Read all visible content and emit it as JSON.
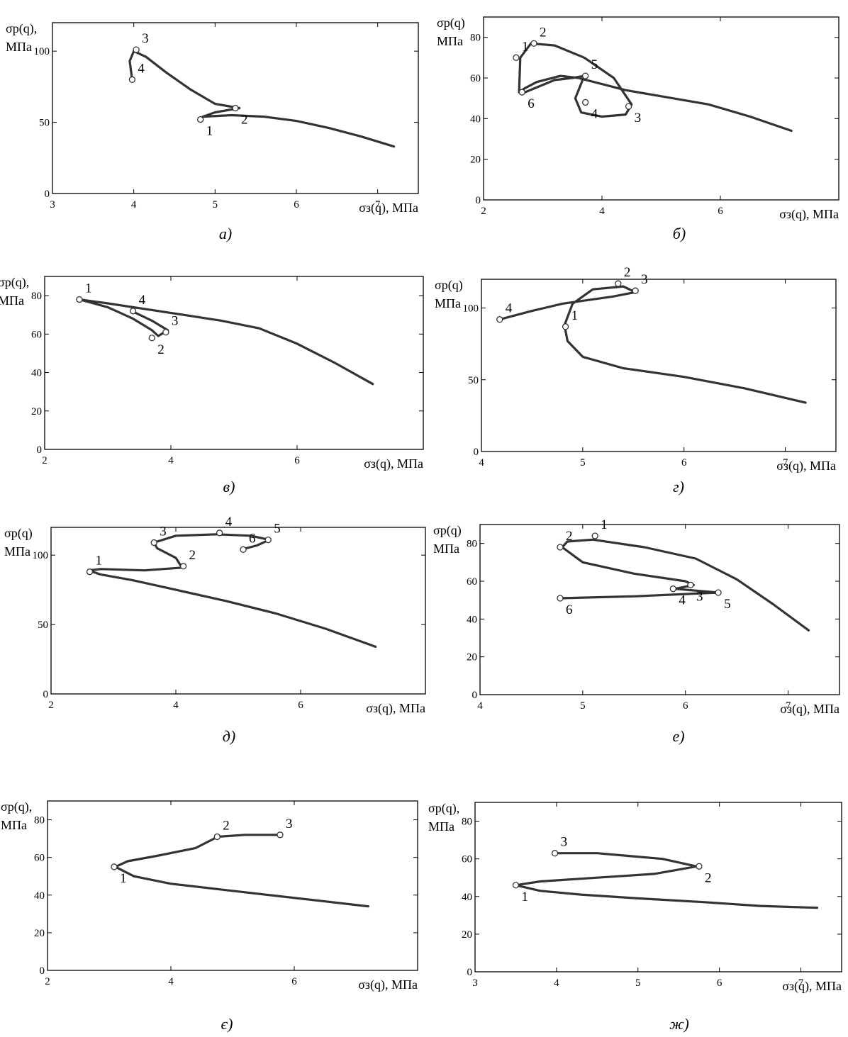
{
  "chart_data": [
    {
      "type": "line",
      "caption": "а)",
      "ylabel": [
        "σр(q),",
        "МПа"
      ],
      "xlabel": "σз(q), МПа",
      "xlim": [
        3,
        7.5
      ],
      "ylim": [
        0,
        120
      ],
      "xticks": [
        3,
        4,
        5,
        6,
        7
      ],
      "yticks": [
        0,
        50,
        100
      ],
      "series": [
        {
          "x": [
            7.2,
            6.8,
            6.4,
            6.0,
            5.6,
            5.2,
            4.85,
            5.0,
            5.3,
            5.0,
            4.7,
            4.4,
            4.15,
            4.0,
            3.95,
            3.98
          ],
          "y": [
            33,
            40,
            46,
            51,
            54,
            55,
            54,
            57,
            60,
            63,
            73,
            85,
            96,
            100,
            93,
            80
          ]
        }
      ],
      "points": [
        {
          "label": "1",
          "x": 4.82,
          "y": 52
        },
        {
          "label": "2",
          "x": 5.25,
          "y": 60
        },
        {
          "label": "3",
          "x": 4.03,
          "y": 101
        },
        {
          "label": "4",
          "x": 3.98,
          "y": 80
        }
      ]
    },
    {
      "type": "line",
      "caption": "б)",
      "ylabel": [
        "σр(q)",
        "МПа"
      ],
      "xlabel": "σз(q), МПа",
      "xlim": [
        2,
        8
      ],
      "ylim": [
        0,
        90
      ],
      "xticks": [
        2,
        4,
        6
      ],
      "yticks": [
        0,
        20,
        40,
        60,
        80
      ],
      "series": [
        {
          "x": [
            7.2,
            6.5,
            5.8,
            5.0,
            4.4,
            4.0,
            3.6,
            3.3,
            2.9,
            2.7,
            2.6,
            2.62,
            2.8,
            3.2,
            3.7,
            4.2,
            4.5,
            4.4,
            4.0,
            3.65,
            3.55,
            3.7,
            3.5,
            3.2,
            2.95,
            2.7
          ],
          "y": [
            34,
            41,
            47,
            51,
            54,
            57,
            60,
            61,
            58,
            55,
            53,
            70,
            77,
            76,
            70,
            60,
            47,
            42,
            41,
            43,
            50,
            61,
            60,
            59,
            56,
            53
          ]
        }
      ],
      "points": [
        {
          "label": "1",
          "x": 2.55,
          "y": 70
        },
        {
          "label": "2",
          "x": 2.85,
          "y": 77
        },
        {
          "label": "3",
          "x": 4.45,
          "y": 46
        },
        {
          "label": "4",
          "x": 3.72,
          "y": 48
        },
        {
          "label": "5",
          "x": 3.72,
          "y": 61
        },
        {
          "label": "6",
          "x": 2.65,
          "y": 53
        }
      ]
    },
    {
      "type": "line",
      "caption": "в)",
      "ylabel": [
        "σр(q),",
        "МПа"
      ],
      "xlabel": "σз(q), МПа",
      "xlim": [
        2,
        8
      ],
      "ylim": [
        0,
        90
      ],
      "xticks": [
        2,
        4,
        6
      ],
      "yticks": [
        0,
        20,
        40,
        60,
        80
      ],
      "series": [
        {
          "x": [
            7.2,
            6.6,
            6.0,
            5.4,
            4.8,
            4.2,
            3.6,
            3.0,
            2.55,
            3.0,
            3.4,
            3.7,
            3.8,
            3.95,
            3.7,
            3.38
          ],
          "y": [
            34,
            45,
            55,
            63,
            67,
            70,
            73,
            76,
            78,
            74,
            68,
            62,
            59,
            62,
            67,
            72
          ]
        }
      ],
      "points": [
        {
          "label": "1",
          "x": 2.55,
          "y": 78
        },
        {
          "label": "2",
          "x": 3.7,
          "y": 58
        },
        {
          "label": "3",
          "x": 3.92,
          "y": 61
        },
        {
          "label": "4",
          "x": 3.4,
          "y": 72
        }
      ]
    },
    {
      "type": "line",
      "caption": "г)",
      "ylabel": [
        "σр(q)",
        "МПа"
      ],
      "xlabel": "σз(q), МПа",
      "xlim": [
        4,
        7.5
      ],
      "ylim": [
        0,
        120
      ],
      "xticks": [
        4,
        5,
        6,
        7
      ],
      "yticks": [
        0,
        50,
        100
      ],
      "series": [
        {
          "x": [
            7.2,
            6.6,
            6.0,
            5.4,
            5.0,
            4.85,
            4.82,
            4.9,
            5.1,
            5.4,
            5.52,
            5.3,
            4.8,
            4.5,
            4.18
          ],
          "y": [
            34,
            44,
            52,
            58,
            66,
            77,
            88,
            103,
            113,
            115,
            111,
            108,
            103,
            98,
            92
          ]
        }
      ],
      "points": [
        {
          "label": "1",
          "x": 4.83,
          "y": 87
        },
        {
          "label": "2",
          "x": 5.35,
          "y": 117
        },
        {
          "label": "3",
          "x": 5.52,
          "y": 112
        },
        {
          "label": "4",
          "x": 4.18,
          "y": 92
        }
      ]
    },
    {
      "type": "line",
      "caption": "д)",
      "ylabel": [
        "σр(q)",
        "МПа"
      ],
      "xlabel": "σз(q), МПа",
      "xlim": [
        2,
        8
      ],
      "ylim": [
        0,
        120
      ],
      "xticks": [
        2,
        4,
        6
      ],
      "yticks": [
        0,
        50,
        100
      ],
      "series": [
        {
          "x": [
            7.2,
            6.4,
            5.6,
            4.8,
            4.0,
            3.3,
            2.8,
            2.6,
            2.8,
            3.5,
            4.1,
            4.0,
            3.7,
            3.65,
            4.0,
            4.65,
            5.2,
            5.5,
            5.3,
            5.05
          ],
          "y": [
            34,
            47,
            58,
            67,
            75,
            82,
            86,
            89,
            90,
            89,
            91,
            98,
            105,
            109,
            114,
            115,
            114,
            111,
            107,
            104
          ]
        }
      ],
      "points": [
        {
          "label": "1",
          "x": 2.62,
          "y": 88
        },
        {
          "label": "2",
          "x": 4.12,
          "y": 92
        },
        {
          "label": "3",
          "x": 3.65,
          "y": 109
        },
        {
          "label": "4",
          "x": 4.7,
          "y": 116
        },
        {
          "label": "5",
          "x": 5.48,
          "y": 111
        },
        {
          "label": "6",
          "x": 5.08,
          "y": 104
        }
      ]
    },
    {
      "type": "line",
      "caption": "е)",
      "ylabel": [
        "σр(q)",
        "МПа"
      ],
      "xlabel": "σз(q), МПа",
      "xlim": [
        4,
        7.5
      ],
      "ylim": [
        0,
        90
      ],
      "xticks": [
        4,
        5,
        6,
        7
      ],
      "yticks": [
        0,
        20,
        40,
        60,
        80
      ],
      "series": [
        {
          "x": [
            7.2,
            6.85,
            6.5,
            6.1,
            5.6,
            5.1,
            4.85,
            4.8,
            5.0,
            5.5,
            6.0,
            6.08,
            5.9,
            6.32,
            5.5,
            4.78
          ],
          "y": [
            34,
            48,
            61,
            72,
            78,
            82,
            81,
            78,
            70,
            64,
            60,
            58,
            56,
            54,
            52,
            51
          ]
        }
      ],
      "points": [
        {
          "label": "1",
          "x": 5.12,
          "y": 84
        },
        {
          "label": "2",
          "x": 4.78,
          "y": 78
        },
        {
          "label": "3",
          "x": 6.05,
          "y": 58
        },
        {
          "label": "4",
          "x": 5.88,
          "y": 56
        },
        {
          "label": "5",
          "x": 6.32,
          "y": 54
        },
        {
          "label": "6",
          "x": 4.78,
          "y": 51
        }
      ]
    },
    {
      "type": "line",
      "caption": "є)",
      "ylabel": [
        "σр(q),",
        "МПа"
      ],
      "xlabel": "σз(q), МПа",
      "xlim": [
        2,
        8
      ],
      "ylim": [
        0,
        90
      ],
      "xticks": [
        2,
        4,
        6
      ],
      "yticks": [
        0,
        20,
        40,
        60,
        80
      ],
      "series": [
        {
          "x": [
            7.2,
            6.4,
            5.6,
            4.8,
            4.0,
            3.4,
            3.1,
            3.3,
            3.8,
            4.4,
            4.76,
            5.2,
            5.75
          ],
          "y": [
            34,
            37,
            40,
            43,
            46,
            50,
            55,
            58,
            61,
            65,
            71,
            72,
            72
          ]
        }
      ],
      "points": [
        {
          "label": "1",
          "x": 3.08,
          "y": 55
        },
        {
          "label": "2",
          "x": 4.75,
          "y": 71
        },
        {
          "label": "3",
          "x": 5.77,
          "y": 72
        }
      ]
    },
    {
      "type": "line",
      "caption": "ж)",
      "ylabel": [
        "σр(q),",
        "МПа"
      ],
      "xlabel": "σз(q), МПа",
      "xlim": [
        3,
        7.5
      ],
      "ylim": [
        0,
        90
      ],
      "xticks": [
        3,
        4,
        5,
        6,
        7
      ],
      "yticks": [
        0,
        20,
        40,
        60,
        80
      ],
      "series": [
        {
          "x": [
            7.2,
            6.5,
            5.8,
            5.0,
            4.3,
            3.8,
            3.5,
            3.8,
            4.5,
            5.2,
            5.72,
            5.3,
            4.5,
            4.0
          ],
          "y": [
            34,
            35,
            37,
            39,
            41,
            43,
            46,
            48,
            50,
            52,
            56,
            60,
            63,
            63
          ]
        }
      ],
      "points": [
        {
          "label": "1",
          "x": 3.5,
          "y": 46
        },
        {
          "label": "2",
          "x": 5.75,
          "y": 56
        },
        {
          "label": "3",
          "x": 3.98,
          "y": 63
        }
      ]
    }
  ]
}
